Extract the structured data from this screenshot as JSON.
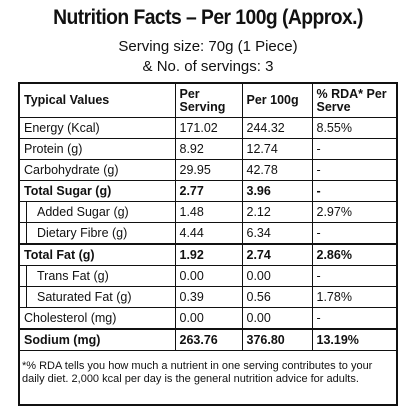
{
  "header": {
    "title": "Nutrition Facts – Per 100g (Approx.)",
    "serving_size": "Serving size: 70g (1 Piece)",
    "servings": "& No. of servings: 3"
  },
  "table": {
    "columns": [
      "Typical Values",
      "Per Serving",
      "Per 100g",
      "% RDA* Per Serve"
    ],
    "rows": [
      [
        "Energy (Kcal)",
        "171.02",
        "244.32",
        "8.55%"
      ],
      [
        "Protein (g)",
        "8.92",
        "12.74",
        "-"
      ],
      [
        "Carbohydrate (g)",
        "29.95",
        "42.78",
        "-"
      ],
      [
        "Total Sugar (g)",
        "2.77",
        "3.96",
        "-"
      ],
      [
        "Added Sugar (g)",
        "1.48",
        "2.12",
        "2.97%"
      ],
      [
        "Dietary Fibre (g)",
        "4.44",
        "6.34",
        "-"
      ],
      [
        "Total Fat (g)",
        "1.92",
        "2.74",
        "2.86%"
      ],
      [
        "Trans Fat (g)",
        "0.00",
        "0.00",
        "-"
      ],
      [
        "Saturated Fat (g)",
        "0.39",
        "0.56",
        "1.78%"
      ],
      [
        "Cholesterol (mg)",
        "0.00",
        "0.00",
        "-"
      ],
      [
        "Sodium (mg)",
        "263.76",
        "376.80",
        "13.19%"
      ]
    ]
  },
  "footnote": "*% RDA tells you how much a nutrient in one serving contributes to your daily diet. 2,000 kcal per day is the general nutrition advice for adults."
}
